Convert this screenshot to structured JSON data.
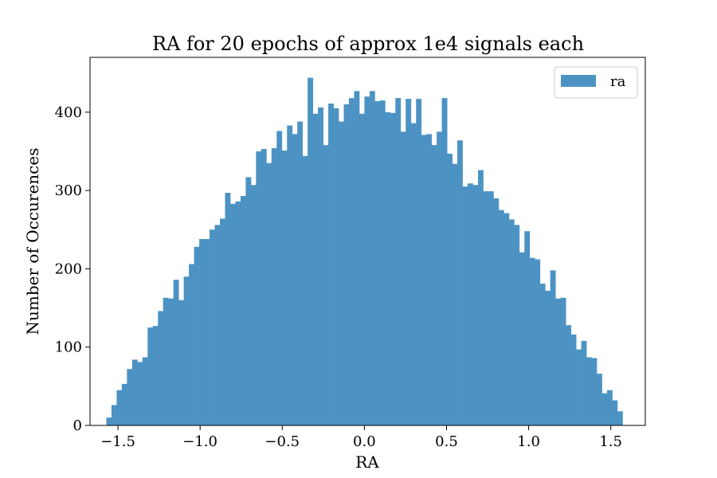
{
  "chart_data": {
    "type": "bar",
    "title": "RA for 20 epochs of approx 1e4 signals each",
    "xlabel": "RA",
    "ylabel": "Number of Occurences",
    "xlim": [
      -1.67,
      1.71
    ],
    "ylim": [
      0,
      470
    ],
    "xticks": [
      -1.5,
      -1.0,
      -0.5,
      0.0,
      0.5,
      1.0,
      1.5
    ],
    "xtick_labels": [
      "−1.5",
      "−1.0",
      "−0.5",
      "0.0",
      "0.5",
      "1.0",
      "1.5"
    ],
    "yticks": [
      0,
      100,
      200,
      300,
      400
    ],
    "ytick_labels": [
      "0",
      "100",
      "200",
      "300",
      "400"
    ],
    "bin_start": -1.5708,
    "bin_width": 0.03142,
    "color": "#4c93c4",
    "legend": {
      "label": "ra",
      "position": "top-right"
    },
    "grid": false,
    "series": [
      {
        "name": "ra",
        "values": [
          10,
          26,
          45,
          53,
          72,
          84,
          81,
          87,
          125,
          127,
          146,
          163,
          162,
          186,
          160,
          190,
          206,
          228,
          238,
          238,
          250,
          256,
          264,
          297,
          283,
          286,
          293,
          317,
          307,
          350,
          353,
          335,
          354,
          376,
          351,
          383,
          372,
          388,
          344,
          444,
          398,
          406,
          358,
          411,
          405,
          388,
          410,
          418,
          427,
          398,
          420,
          427,
          414,
          415,
          400,
          399,
          418,
          375,
          417,
          386,
          417,
          371,
          372,
          358,
          375,
          418,
          347,
          334,
          364,
          305,
          309,
          307,
          326,
          299,
          299,
          290,
          275,
          271,
          263,
          256,
          221,
          248,
          214,
          212,
          181,
          172,
          198,
          162,
          163,
          128,
          116,
          97,
          108,
          87,
          86,
          66,
          41,
          45,
          32,
          18
        ]
      }
    ]
  }
}
